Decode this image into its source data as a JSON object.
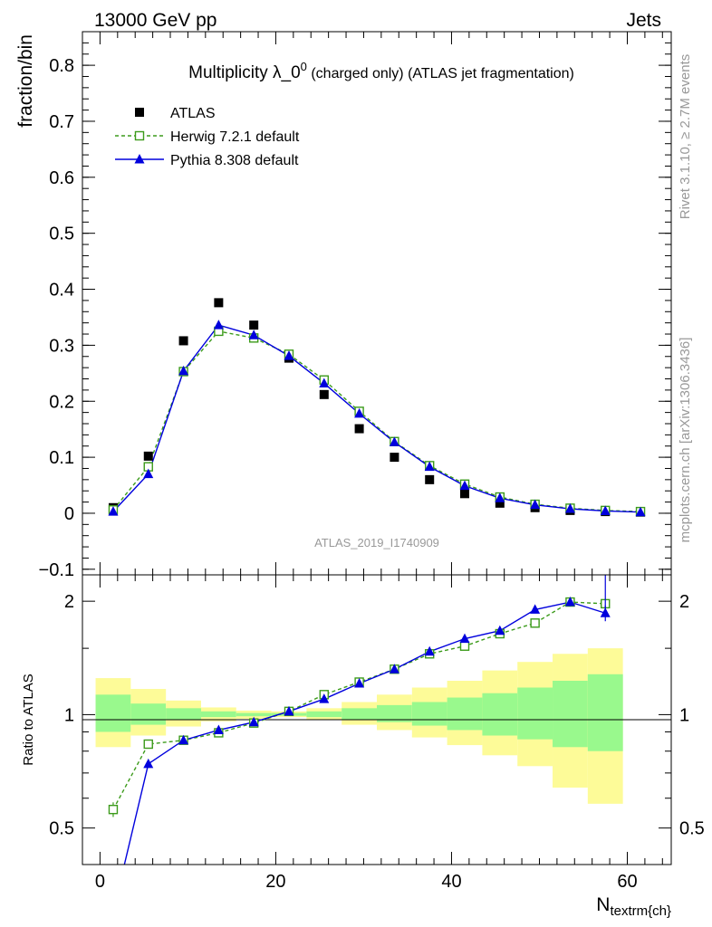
{
  "header": {
    "energy_label": "13000 GeV pp",
    "category_label": "Jets"
  },
  "side_labels": {
    "rivet": "Rivet 3.1.10, ≥ 2.7M events",
    "mcplots": "mcplots.cern.ch [arXiv:1306.3436]"
  },
  "chart_data": [
    {
      "type": "scatter",
      "title_main": "Multiplicity λ_0",
      "title_sup": "0",
      "title_rest": " (charged only) (ATLAS jet fragmentation)",
      "ylabel": "fraction/bin",
      "xlabel": "",
      "xlim": [
        -2,
        65
      ],
      "ylim": [
        -0.11,
        0.86
      ],
      "yticks": [
        -0.1,
        0,
        0.1,
        0.2,
        0.3,
        0.4,
        0.5,
        0.6,
        0.7,
        0.8
      ],
      "ytick_labels": [
        "−0.1",
        "0",
        "0.1",
        "0.2",
        "0.3",
        "0.4",
        "0.5",
        "0.6",
        "0.7",
        "0.8"
      ],
      "watermark": "ATLAS_2019_I1740909",
      "legend_position": "top-left",
      "series": [
        {
          "name": "ATLAS",
          "color": "#000000",
          "marker": "filled-square",
          "x": [
            1.5,
            5.5,
            9.5,
            13.5,
            17.5,
            21.5,
            25.5,
            29.5,
            33.5,
            37.5,
            41.5,
            45.5,
            49.5,
            53.5,
            57.5,
            61.5
          ],
          "y": [
            0.01,
            0.102,
            0.308,
            0.376,
            0.336,
            0.277,
            0.212,
            0.151,
            0.1,
            0.06,
            0.035,
            0.018,
            0.01,
            0.005,
            0.003,
            0.002
          ]
        },
        {
          "name": "Herwig 7.2.1 default",
          "color": "#3c9b1b",
          "marker": "open-square",
          "line": "dashed",
          "x": [
            1.5,
            5.5,
            9.5,
            13.5,
            17.5,
            21.5,
            25.5,
            29.5,
            33.5,
            37.5,
            41.5,
            45.5,
            49.5,
            53.5,
            57.5,
            61.5
          ],
          "y": [
            0.006,
            0.083,
            0.253,
            0.325,
            0.313,
            0.284,
            0.238,
            0.182,
            0.128,
            0.085,
            0.052,
            0.029,
            0.016,
            0.009,
            0.005,
            0.003
          ]
        },
        {
          "name": "Pythia 8.308 default",
          "color": "#0000dd",
          "marker": "filled-triangle",
          "line": "solid",
          "x": [
            1.5,
            5.5,
            9.5,
            13.5,
            17.5,
            21.5,
            25.5,
            29.5,
            33.5,
            37.5,
            41.5,
            45.5,
            49.5,
            53.5,
            57.5,
            61.5
          ],
          "y": [
            0.003,
            0.07,
            0.254,
            0.336,
            0.318,
            0.281,
            0.232,
            0.178,
            0.127,
            0.083,
            0.049,
            0.027,
            0.015,
            0.008,
            0.004,
            0.002
          ]
        }
      ]
    },
    {
      "type": "line",
      "ylabel": "Ratio to ATLAS",
      "xlabel": "N_textrm{ch}",
      "xlabel_main": "N",
      "xlabel_sub": "textrm{ch}",
      "xlim": [
        -2,
        65
      ],
      "ylim": [
        0.4,
        2.35
      ],
      "y_scale": "log",
      "xticks": [
        0,
        20,
        40,
        60
      ],
      "xtick_labels": [
        "0",
        "20",
        "40",
        "60"
      ],
      "yticks": [
        0.5,
        1,
        2
      ],
      "ytick_labels": [
        "0.5",
        "1",
        "2"
      ],
      "band_edges": [
        -0.5,
        3.5,
        7.5,
        11.5,
        15.5,
        19.5,
        23.5,
        27.5,
        31.5,
        35.5,
        39.5,
        43.5,
        47.5,
        51.5,
        55.5,
        59.5
      ],
      "band_inner": {
        "color": "#99f98d",
        "lo": [
          0.9,
          0.94,
          0.97,
          0.985,
          0.99,
          0.993,
          0.985,
          0.97,
          0.955,
          0.935,
          0.91,
          0.88,
          0.86,
          0.82,
          0.8
        ],
        "hi": [
          1.13,
          1.07,
          1.04,
          1.02,
          1.01,
          1.01,
          1.02,
          1.04,
          1.06,
          1.08,
          1.11,
          1.14,
          1.18,
          1.23,
          1.28
        ]
      },
      "band_outer": {
        "color": "#fdfb98",
        "lo": [
          0.82,
          0.88,
          0.93,
          0.96,
          0.975,
          0.985,
          0.97,
          0.94,
          0.91,
          0.87,
          0.83,
          0.78,
          0.73,
          0.64,
          0.58
        ]
      },
      "band_outer_hi": [
        1.25,
        1.17,
        1.09,
        1.045,
        1.025,
        1.02,
        1.04,
        1.08,
        1.13,
        1.18,
        1.23,
        1.31,
        1.38,
        1.45,
        1.5
      ],
      "series": [
        {
          "name": "Herwig 7.2.1 default",
          "color": "#3c9b1b",
          "marker": "open-square",
          "line": "dashed",
          "x": [
            1.5,
            5.5,
            9.5,
            13.5,
            17.5,
            21.5,
            25.5,
            29.5,
            33.5,
            37.5,
            41.5,
            45.5,
            49.5,
            53.5,
            57.5
          ],
          "y": [
            0.56,
            0.835,
            0.855,
            0.895,
            0.95,
            1.02,
            1.13,
            1.22,
            1.32,
            1.45,
            1.52,
            1.64,
            1.75,
            1.99,
            1.97
          ],
          "err": [
            0.025,
            0.01,
            0.01,
            0.01,
            0.01,
            0.01,
            0.01,
            0.01,
            0.015,
            0.02,
            0.02,
            0.03,
            0.03,
            0.04,
            0.06
          ]
        },
        {
          "name": "Pythia 8.308 default",
          "color": "#0000dd",
          "marker": "filled-triangle",
          "line": "solid",
          "x": [
            1.5,
            5.5,
            9.5,
            13.5,
            17.5,
            21.5,
            25.5,
            29.5,
            33.5,
            37.5,
            41.5,
            45.5,
            49.5,
            53.5,
            57.5
          ],
          "y": [
            0.3,
            0.74,
            0.855,
            0.91,
            0.955,
            1.02,
            1.1,
            1.21,
            1.32,
            1.47,
            1.59,
            1.67,
            1.9,
            1.99,
            1.86
          ],
          "err": [
            0.02,
            0.01,
            0.01,
            0.01,
            0.01,
            0.01,
            0.01,
            0.01,
            0.015,
            0.02,
            0.02,
            0.03,
            0.04,
            0.05,
            0.09
          ]
        }
      ]
    }
  ]
}
